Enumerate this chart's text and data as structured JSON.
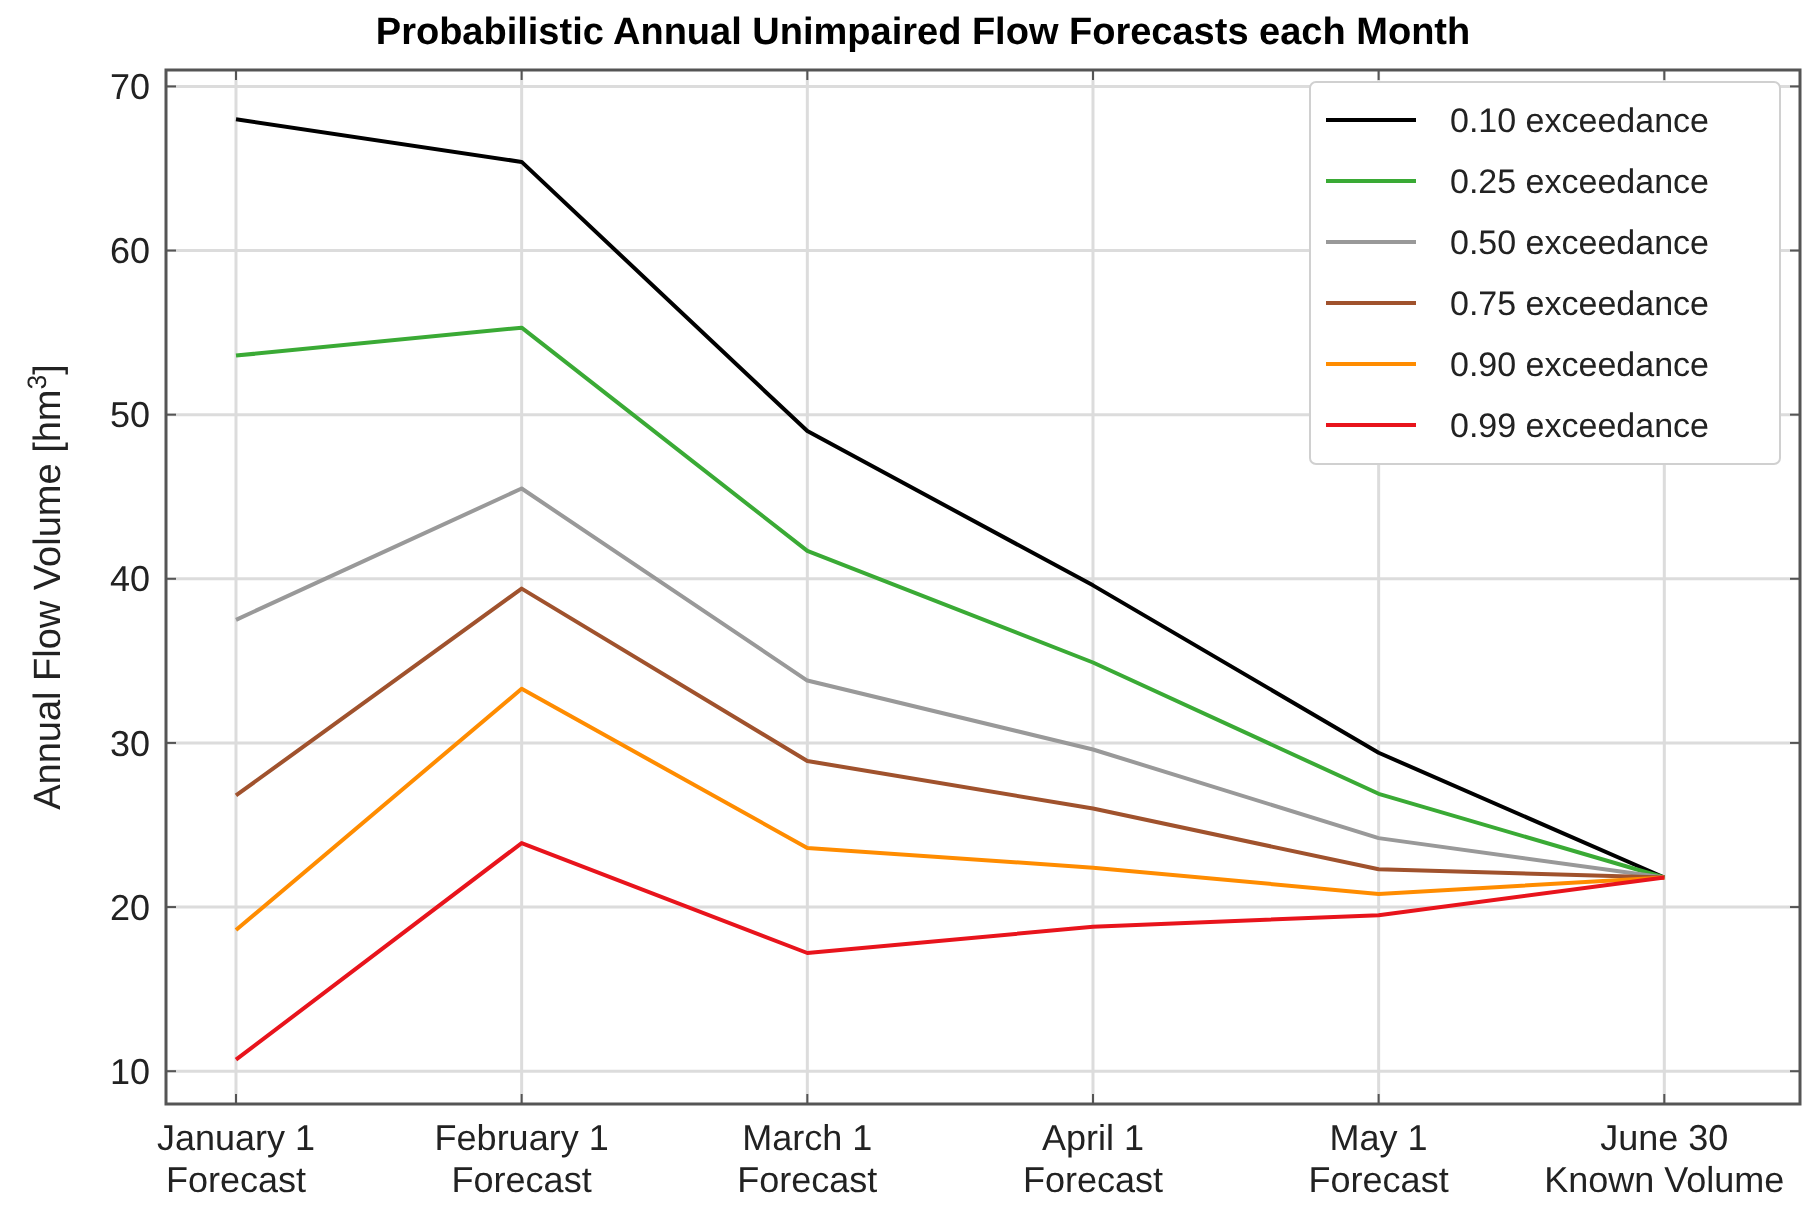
{
  "chart_data": {
    "type": "line",
    "title": "Probabilistic Annual Unimpaired Flow Forecasts each Month",
    "ylabel": "Annual Flow Volume [hm$^{3}$]",
    "categories": [
      "January 1\nForecast",
      "February 1\nForecast",
      "March 1\nForecast",
      "April 1\nForecast",
      "May 1\nForecast",
      "June 30\nKnown Volume"
    ],
    "series": [
      {
        "name": "0.10 exceedance",
        "color": "#000000",
        "values": [
          68.0,
          65.4,
          49.0,
          39.6,
          29.4,
          21.8
        ]
      },
      {
        "name": "0.25 exceedance",
        "color": "#3aaa35",
        "values": [
          53.6,
          55.3,
          41.7,
          34.9,
          26.9,
          21.8
        ]
      },
      {
        "name": "0.50 exceedance",
        "color": "#999999",
        "values": [
          37.5,
          45.5,
          33.8,
          29.6,
          24.2,
          21.8
        ]
      },
      {
        "name": "0.75 exceedance",
        "color": "#a0522d",
        "values": [
          26.8,
          39.4,
          28.9,
          26.0,
          22.3,
          21.8
        ]
      },
      {
        "name": "0.90 exceedance",
        "color": "#ff8c00",
        "values": [
          18.6,
          33.3,
          23.6,
          22.4,
          20.8,
          21.8
        ]
      },
      {
        "name": "0.99 exceedance",
        "color": "#e8141c",
        "values": [
          10.7,
          23.9,
          17.2,
          18.8,
          19.5,
          21.8
        ]
      }
    ],
    "ylim": [
      8,
      71
    ],
    "yticks": [
      10,
      20,
      30,
      40,
      50,
      60,
      70
    ],
    "grid": true,
    "legend": "top right",
    "marker": "none",
    "line_style": "solid"
  }
}
